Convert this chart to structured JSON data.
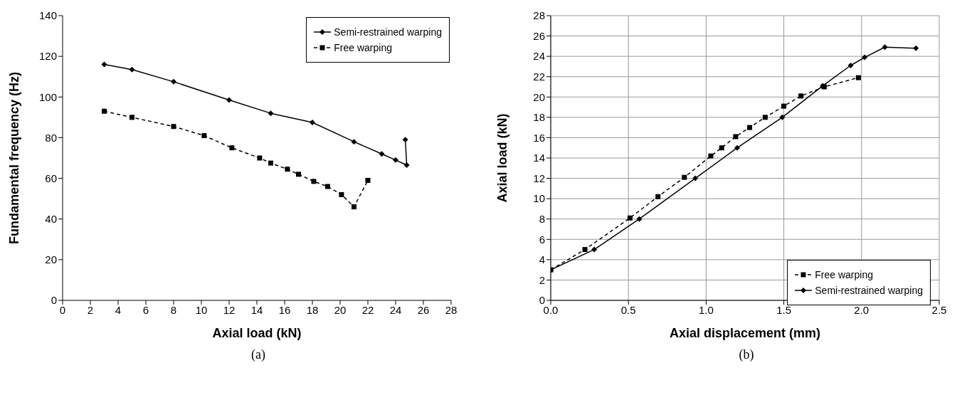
{
  "chart_data": [
    {
      "type": "line",
      "xlabel": "Axial load (kN)",
      "ylabel": "Fundamental frequency (Hz)",
      "annotations": [
        "(a)"
      ],
      "xlim": [
        0,
        28
      ],
      "xticks": [
        0,
        2,
        4,
        6,
        8,
        10,
        12,
        14,
        16,
        18,
        20,
        22,
        24,
        26,
        28
      ],
      "ylim": [
        0,
        140
      ],
      "yticks": [
        0,
        20,
        40,
        60,
        80,
        100,
        120,
        140
      ],
      "grid": false,
      "legend": "top right",
      "series": [
        {
          "name": "Semi-restrained warping",
          "color": "#000000",
          "marker": "diamond",
          "line_style": "solid",
          "x": [
            3,
            5,
            8,
            12,
            15,
            18,
            21,
            23,
            24,
            24.8,
            24.7
          ],
          "values": [
            116,
            113.5,
            107.5,
            98.5,
            92,
            87.5,
            78,
            72,
            69,
            66.5,
            79
          ]
        },
        {
          "name": "Free warping",
          "color": "#000000",
          "marker": "square",
          "line_style": "dashed",
          "x": [
            3,
            5,
            8,
            10.2,
            12.2,
            14.2,
            15,
            16.2,
            17,
            18.1,
            19.1,
            20.1,
            21,
            22
          ],
          "values": [
            93,
            90,
            85.5,
            81,
            75,
            70,
            67.5,
            64.5,
            62,
            58.5,
            56,
            52,
            46,
            59
          ]
        }
      ]
    },
    {
      "type": "line",
      "xlabel": "Axial displacement (mm)",
      "ylabel": "Axial load (kN)",
      "annotations": [
        "(b)"
      ],
      "xlim": [
        0,
        2.5
      ],
      "xticks": [
        {
          "value": 0,
          "label": "0.0"
        },
        0.5,
        {
          "value": 1,
          "label": "1.0"
        },
        1.5,
        {
          "value": 2,
          "label": "2.0"
        },
        2.5
      ],
      "ylim": [
        0,
        28
      ],
      "yticks": [
        0,
        2,
        4,
        6,
        8,
        10,
        12,
        14,
        16,
        18,
        20,
        22,
        24,
        26,
        28
      ],
      "grid": true,
      "legend": "bottom right",
      "series": [
        {
          "name": "Free warping",
          "color": "#000000",
          "marker": "square",
          "line_style": "dashed",
          "x": [
            0,
            0.22,
            0.51,
            0.69,
            0.86,
            1.03,
            1.1,
            1.19,
            1.28,
            1.38,
            1.5,
            1.61,
            1.76,
            1.98
          ],
          "values": [
            3,
            5,
            8.1,
            10.2,
            12.1,
            14.2,
            15,
            16.1,
            17,
            18,
            19.1,
            20.1,
            21,
            21.9
          ]
        },
        {
          "name": "Semi-restrained warping",
          "color": "#000000",
          "marker": "diamond",
          "line_style": "solid",
          "x": [
            0,
            0.28,
            0.57,
            0.93,
            1.2,
            1.49,
            1.75,
            1.93,
            2.02,
            2.15,
            2.35
          ],
          "values": [
            3,
            5,
            8,
            12,
            15,
            18,
            21.1,
            23.1,
            23.9,
            24.9,
            24.8
          ]
        }
      ]
    }
  ]
}
